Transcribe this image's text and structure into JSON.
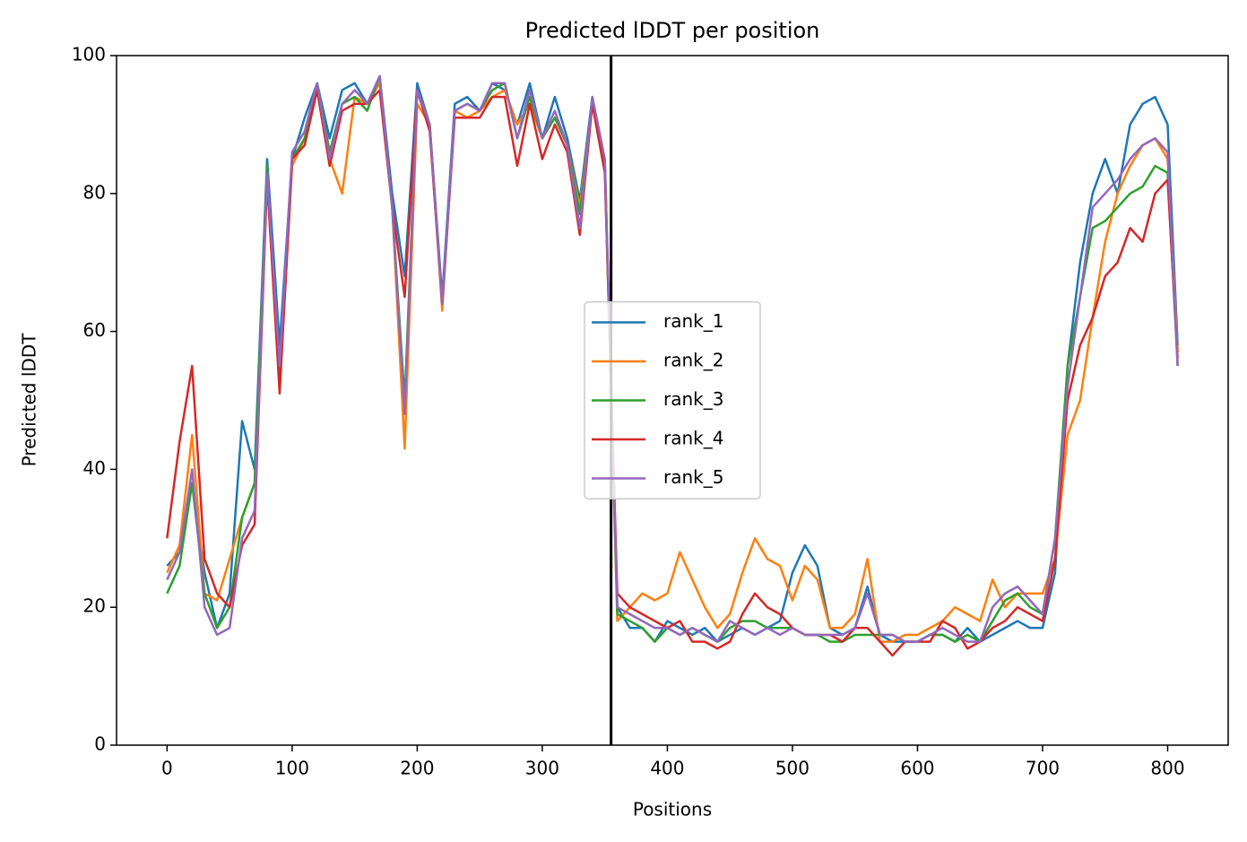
{
  "chart_data": {
    "type": "line",
    "title": "Predicted lDDT per position",
    "xlabel": "Positions",
    "ylabel": "Predicted lDDT",
    "x": [
      0,
      10,
      20,
      30,
      40,
      50,
      60,
      70,
      80,
      90,
      100,
      110,
      120,
      130,
      140,
      150,
      160,
      170,
      180,
      190,
      200,
      210,
      220,
      230,
      240,
      250,
      260,
      270,
      280,
      290,
      300,
      310,
      320,
      330,
      340,
      350,
      360,
      370,
      380,
      390,
      400,
      410,
      420,
      430,
      440,
      450,
      460,
      470,
      480,
      490,
      500,
      510,
      520,
      530,
      540,
      550,
      560,
      570,
      580,
      590,
      600,
      610,
      620,
      630,
      640,
      650,
      660,
      670,
      680,
      690,
      700,
      710,
      720,
      730,
      740,
      750,
      760,
      770,
      780,
      790,
      800,
      808
    ],
    "series": [
      {
        "name": "rank_1",
        "color": "#1f77b4",
        "values": [
          26,
          28,
          38,
          25,
          17,
          22,
          47,
          40,
          85,
          58,
          85,
          91,
          96,
          88,
          95,
          96,
          93,
          97,
          80,
          68,
          96,
          90,
          65,
          93,
          94,
          92,
          96,
          95,
          90,
          96,
          88,
          94,
          88,
          79,
          94,
          85,
          20,
          17,
          17,
          15,
          18,
          17,
          16,
          17,
          15,
          16,
          17,
          16,
          17,
          18,
          25,
          29,
          26,
          17,
          16,
          17,
          23,
          16,
          15,
          15,
          15,
          16,
          16,
          15,
          17,
          15,
          16,
          17,
          18,
          17,
          17,
          25,
          55,
          70,
          80,
          85,
          80,
          90,
          93,
          94,
          90,
          58
        ]
      },
      {
        "name": "rank_2",
        "color": "#ff7f0e",
        "values": [
          25,
          29,
          45,
          22,
          21,
          27,
          33,
          38,
          82,
          52,
          84,
          88,
          95,
          85,
          80,
          94,
          93,
          96,
          78,
          43,
          93,
          90,
          63,
          92,
          91,
          92,
          94,
          95,
          90,
          93,
          88,
          91,
          87,
          78,
          93,
          84,
          18,
          20,
          22,
          21,
          22,
          28,
          24,
          20,
          17,
          19,
          25,
          30,
          27,
          26,
          21,
          26,
          24,
          17,
          17,
          19,
          27,
          15,
          15,
          16,
          16,
          17,
          18,
          20,
          19,
          18,
          24,
          20,
          22,
          22,
          22,
          27,
          45,
          50,
          62,
          73,
          80,
          84,
          87,
          88,
          85,
          57
        ]
      },
      {
        "name": "rank_3",
        "color": "#2ca02c",
        "values": [
          22,
          26,
          38,
          22,
          17,
          20,
          33,
          38,
          84,
          52,
          85,
          88,
          96,
          86,
          93,
          94,
          92,
          97,
          78,
          50,
          95,
          90,
          64,
          92,
          93,
          92,
          95,
          96,
          88,
          94,
          88,
          91,
          87,
          77,
          93,
          84,
          19,
          18,
          17,
          15,
          17,
          16,
          17,
          16,
          15,
          17,
          18,
          18,
          17,
          17,
          17,
          16,
          16,
          15,
          15,
          16,
          16,
          16,
          16,
          15,
          15,
          16,
          16,
          15,
          16,
          15,
          18,
          21,
          22,
          20,
          19,
          30,
          55,
          65,
          75,
          76,
          78,
          80,
          81,
          84,
          83,
          55
        ]
      },
      {
        "name": "rank_4",
        "color": "#d62728",
        "values": [
          30,
          44,
          55,
          27,
          22,
          20,
          29,
          32,
          82,
          51,
          85,
          87,
          95,
          84,
          92,
          93,
          93,
          95,
          78,
          65,
          95,
          89,
          64,
          91,
          91,
          91,
          94,
          94,
          84,
          93,
          85,
          90,
          86,
          74,
          93,
          83,
          22,
          20,
          19,
          18,
          17,
          18,
          15,
          15,
          14,
          15,
          19,
          22,
          20,
          19,
          17,
          16,
          16,
          16,
          15,
          17,
          17,
          15,
          13,
          15,
          15,
          15,
          18,
          17,
          14,
          15,
          17,
          18,
          20,
          19,
          18,
          27,
          50,
          58,
          62,
          68,
          70,
          75,
          73,
          80,
          82,
          56
        ]
      },
      {
        "name": "rank_5",
        "color": "#9467bd",
        "values": [
          24,
          28,
          40,
          20,
          16,
          17,
          30,
          34,
          83,
          55,
          86,
          89,
          96,
          85,
          93,
          95,
          93,
          97,
          78,
          48,
          95,
          90,
          64,
          92,
          93,
          92,
          96,
          96,
          88,
          95,
          88,
          92,
          87,
          75,
          94,
          85,
          20,
          19,
          18,
          17,
          17,
          16,
          17,
          16,
          15,
          18,
          17,
          16,
          17,
          16,
          17,
          16,
          16,
          16,
          16,
          17,
          22,
          16,
          16,
          15,
          15,
          16,
          17,
          16,
          15,
          15,
          20,
          22,
          23,
          21,
          19,
          30,
          52,
          65,
          78,
          80,
          82,
          85,
          87,
          88,
          86,
          55
        ]
      }
    ],
    "vlines": [
      {
        "x": 355,
        "color": "#000000"
      }
    ],
    "xlim": [
      -40.4,
      848.4
    ],
    "ylim": [
      0,
      100
    ],
    "xticks": [
      0,
      100,
      200,
      300,
      400,
      500,
      600,
      700,
      800
    ],
    "yticks": [
      0,
      20,
      40,
      60,
      80,
      100
    ],
    "legend": "center",
    "grid": false
  }
}
